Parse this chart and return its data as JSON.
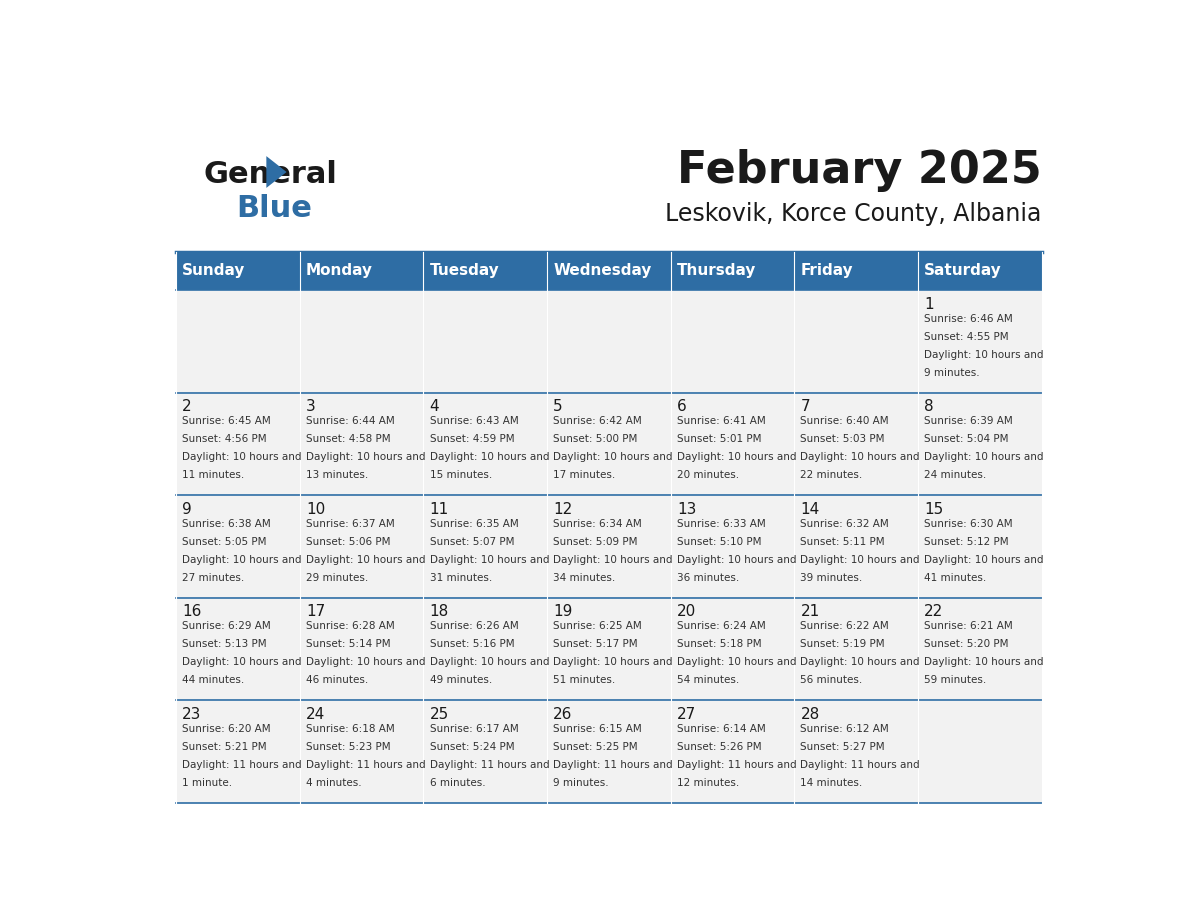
{
  "title": "February 2025",
  "subtitle": "Leskovik, Korce County, Albania",
  "days_of_week": [
    "Sunday",
    "Monday",
    "Tuesday",
    "Wednesday",
    "Thursday",
    "Friday",
    "Saturday"
  ],
  "header_bg": "#2E6DA4",
  "header_text": "#FFFFFF",
  "cell_bg_light": "#F2F2F2",
  "cell_bg_white": "#FFFFFF",
  "line_color": "#2E6DA4",
  "text_color": "#333333",
  "day_num_color": "#333333",
  "calendar_data": [
    [
      null,
      null,
      null,
      null,
      null,
      null,
      {
        "day": 1,
        "sunrise": "6:46 AM",
        "sunset": "4:55 PM",
        "daylight": "10 hours and 9 minutes."
      }
    ],
    [
      {
        "day": 2,
        "sunrise": "6:45 AM",
        "sunset": "4:56 PM",
        "daylight": "10 hours and 11 minutes."
      },
      {
        "day": 3,
        "sunrise": "6:44 AM",
        "sunset": "4:58 PM",
        "daylight": "10 hours and 13 minutes."
      },
      {
        "day": 4,
        "sunrise": "6:43 AM",
        "sunset": "4:59 PM",
        "daylight": "10 hours and 15 minutes."
      },
      {
        "day": 5,
        "sunrise": "6:42 AM",
        "sunset": "5:00 PM",
        "daylight": "10 hours and 17 minutes."
      },
      {
        "day": 6,
        "sunrise": "6:41 AM",
        "sunset": "5:01 PM",
        "daylight": "10 hours and 20 minutes."
      },
      {
        "day": 7,
        "sunrise": "6:40 AM",
        "sunset": "5:03 PM",
        "daylight": "10 hours and 22 minutes."
      },
      {
        "day": 8,
        "sunrise": "6:39 AM",
        "sunset": "5:04 PM",
        "daylight": "10 hours and 24 minutes."
      }
    ],
    [
      {
        "day": 9,
        "sunrise": "6:38 AM",
        "sunset": "5:05 PM",
        "daylight": "10 hours and 27 minutes."
      },
      {
        "day": 10,
        "sunrise": "6:37 AM",
        "sunset": "5:06 PM",
        "daylight": "10 hours and 29 minutes."
      },
      {
        "day": 11,
        "sunrise": "6:35 AM",
        "sunset": "5:07 PM",
        "daylight": "10 hours and 31 minutes."
      },
      {
        "day": 12,
        "sunrise": "6:34 AM",
        "sunset": "5:09 PM",
        "daylight": "10 hours and 34 minutes."
      },
      {
        "day": 13,
        "sunrise": "6:33 AM",
        "sunset": "5:10 PM",
        "daylight": "10 hours and 36 minutes."
      },
      {
        "day": 14,
        "sunrise": "6:32 AM",
        "sunset": "5:11 PM",
        "daylight": "10 hours and 39 minutes."
      },
      {
        "day": 15,
        "sunrise": "6:30 AM",
        "sunset": "5:12 PM",
        "daylight": "10 hours and 41 minutes."
      }
    ],
    [
      {
        "day": 16,
        "sunrise": "6:29 AM",
        "sunset": "5:13 PM",
        "daylight": "10 hours and 44 minutes."
      },
      {
        "day": 17,
        "sunrise": "6:28 AM",
        "sunset": "5:14 PM",
        "daylight": "10 hours and 46 minutes."
      },
      {
        "day": 18,
        "sunrise": "6:26 AM",
        "sunset": "5:16 PM",
        "daylight": "10 hours and 49 minutes."
      },
      {
        "day": 19,
        "sunrise": "6:25 AM",
        "sunset": "5:17 PM",
        "daylight": "10 hours and 51 minutes."
      },
      {
        "day": 20,
        "sunrise": "6:24 AM",
        "sunset": "5:18 PM",
        "daylight": "10 hours and 54 minutes."
      },
      {
        "day": 21,
        "sunrise": "6:22 AM",
        "sunset": "5:19 PM",
        "daylight": "10 hours and 56 minutes."
      },
      {
        "day": 22,
        "sunrise": "6:21 AM",
        "sunset": "5:20 PM",
        "daylight": "10 hours and 59 minutes."
      }
    ],
    [
      {
        "day": 23,
        "sunrise": "6:20 AM",
        "sunset": "5:21 PM",
        "daylight": "11 hours and 1 minute."
      },
      {
        "day": 24,
        "sunrise": "6:18 AM",
        "sunset": "5:23 PM",
        "daylight": "11 hours and 4 minutes."
      },
      {
        "day": 25,
        "sunrise": "6:17 AM",
        "sunset": "5:24 PM",
        "daylight": "11 hours and 6 minutes."
      },
      {
        "day": 26,
        "sunrise": "6:15 AM",
        "sunset": "5:25 PM",
        "daylight": "11 hours and 9 minutes."
      },
      {
        "day": 27,
        "sunrise": "6:14 AM",
        "sunset": "5:26 PM",
        "daylight": "11 hours and 12 minutes."
      },
      {
        "day": 28,
        "sunrise": "6:12 AM",
        "sunset": "5:27 PM",
        "daylight": "11 hours and 14 minutes."
      },
      null
    ]
  ],
  "logo_text_general": "General",
  "logo_text_blue": "Blue",
  "logo_color_general": "#1a1a1a",
  "logo_color_blue": "#2E6DA4"
}
